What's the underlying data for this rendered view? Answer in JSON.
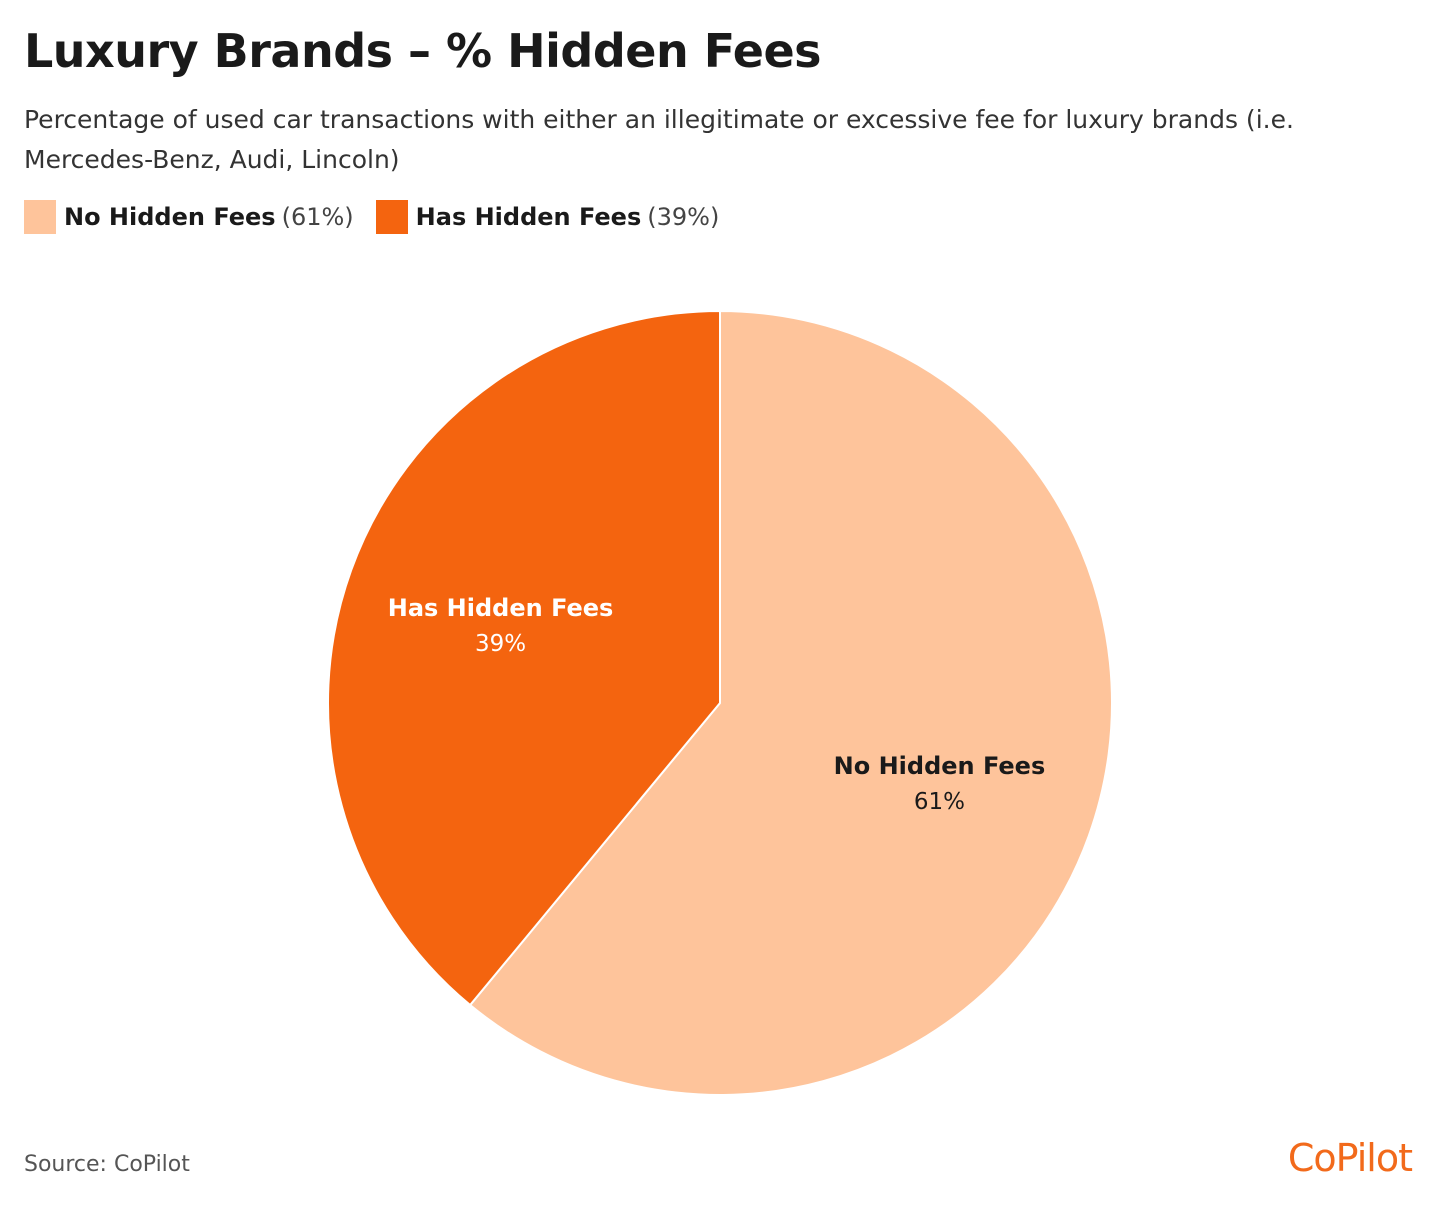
{
  "title": "Luxury Brands – % Hidden Fees",
  "subtitle": "Percentage of used car transactions with either an illegitimate or excessive fee for luxury brands (i.e. Mercedes-Benz, Audi, Lincoln)",
  "source": "Source: CoPilot",
  "logo": "CoPilot",
  "chart_data": {
    "type": "pie",
    "title": "Luxury Brands – % Hidden Fees",
    "legend_position": "top-left",
    "slices": [
      {
        "label": "No Hidden Fees",
        "value": 61,
        "display": "61%",
        "legend_pct": "(61%)",
        "color": "#fec49b",
        "text_color": "#1a1a1a"
      },
      {
        "label": "Has Hidden Fees",
        "value": 39,
        "display": "39%",
        "legend_pct": "(39%)",
        "color": "#f4640f",
        "text_color": "#ffffff"
      }
    ]
  }
}
